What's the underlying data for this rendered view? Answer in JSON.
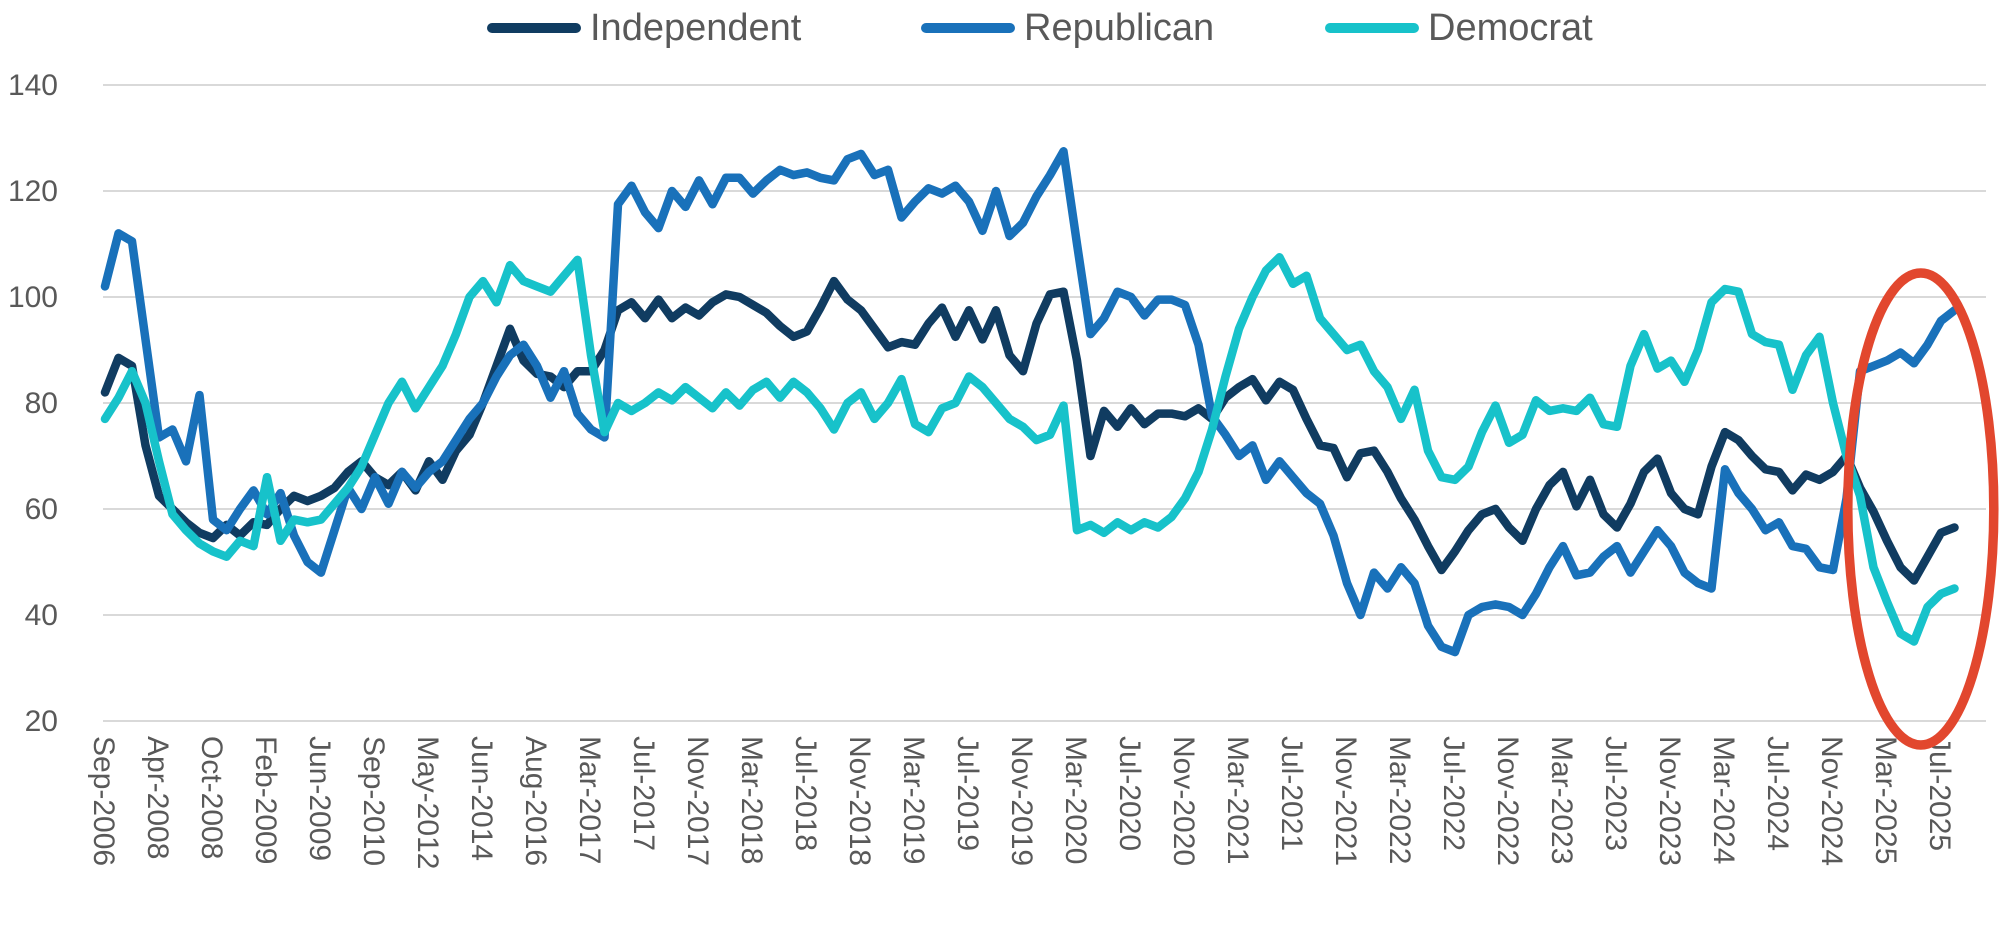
{
  "legend": {
    "items": [
      {
        "label": "Independent",
        "color": "#103c61"
      },
      {
        "label": "Republican",
        "color": "#1971ba"
      },
      {
        "label": "Democrat",
        "color": "#17c2ca"
      }
    ]
  },
  "annotation": {
    "shape": "ellipse",
    "meaning": "highlight of most recent period (Mar-2025 to Jul-2025)",
    "color": "#e2472e"
  },
  "axis_colors": {
    "tick_text": "#595959",
    "gridline": "#d9d9d9"
  },
  "chart_data": {
    "type": "line",
    "title": "",
    "xlabel": "",
    "ylabel": "",
    "grid": "horizontal",
    "legend_position": "top-center",
    "ylim": [
      20,
      140
    ],
    "yticks": [
      20,
      40,
      60,
      80,
      100,
      120,
      140
    ],
    "x_tick_labels": [
      "Sep-2006",
      "Apr-2008",
      "Oct-2008",
      "Feb-2009",
      "Jun-2009",
      "Sep-2010",
      "May-2012",
      "Jun-2014",
      "Aug-2016",
      "Mar-2017",
      "Jul-2017",
      "Nov-2017",
      "Mar-2018",
      "Jul-2018",
      "Nov-2018",
      "Mar-2019",
      "Jul-2019",
      "Nov-2019",
      "Mar-2020",
      "Jul-2020",
      "Nov-2020",
      "Mar-2021",
      "Jul-2021",
      "Nov-2021",
      "Mar-2022",
      "Jul-2022",
      "Nov-2022",
      "Mar-2023",
      "Jul-2023",
      "Nov-2023",
      "Mar-2024",
      "Jul-2024",
      "Nov-2024",
      "Mar-2025",
      "Jul-2025"
    ],
    "points_per_label_gap": 4,
    "x_tick_label_rotation_deg": 90,
    "series": [
      {
        "name": "Independent",
        "color": "#103c61",
        "values": [
          82,
          88.5,
          87,
          72,
          62.5,
          60,
          57.5,
          55.5,
          54.5,
          57,
          55,
          57.5,
          57,
          60,
          62.5,
          61.5,
          62.5,
          64,
          67,
          69,
          66,
          64.5,
          67,
          63.5,
          69,
          65.5,
          71,
          74,
          80,
          87,
          94,
          88,
          85.5,
          85,
          83,
          86,
          86,
          90,
          97.5,
          99,
          96,
          99.5,
          96,
          98,
          96.5,
          99,
          100.5,
          100,
          98.5,
          97,
          94.5,
          92.5,
          93.5,
          98,
          103,
          99.5,
          97.5,
          94,
          90.5,
          91.5,
          91,
          95,
          98,
          92.5,
          97.5,
          92,
          97.5,
          89,
          86,
          95,
          100.5,
          101,
          88,
          70,
          78.5,
          75.5,
          79,
          76,
          78,
          78,
          77.5,
          79,
          77,
          81,
          83,
          84.5,
          80.5,
          84,
          82.5,
          77,
          72,
          71.5,
          66,
          70.5,
          71,
          67,
          62,
          58,
          53,
          48.5,
          52,
          56,
          59,
          60,
          56.5,
          54,
          60,
          64.5,
          67,
          60.5,
          65.5,
          59,
          56.5,
          61,
          67,
          69.5,
          63,
          60,
          59,
          68,
          74.5,
          73,
          70,
          67.5,
          67,
          63.5,
          66.5,
          65.5,
          67,
          70,
          64,
          59.5,
          54,
          49,
          46.5,
          51,
          55.5,
          56.5
        ]
      },
      {
        "name": "Republican",
        "color": "#1971ba",
        "values": [
          102,
          112,
          110.5,
          92,
          73.5,
          75,
          69,
          81.5,
          58,
          56,
          60,
          63.5,
          59,
          63,
          55,
          50,
          48,
          56,
          64,
          60,
          66,
          61,
          67,
          64,
          67,
          69,
          73,
          77,
          80,
          85,
          89,
          91,
          87,
          81,
          86,
          78,
          75,
          73.5,
          117.5,
          121,
          116,
          113,
          120,
          117,
          122,
          117.5,
          122.5,
          122.5,
          119.5,
          122,
          124,
          123,
          123.5,
          122.5,
          122,
          126,
          127,
          123,
          124,
          115,
          118,
          120.5,
          119.5,
          121,
          118,
          112.5,
          120,
          111.5,
          114,
          119,
          123,
          127.5,
          110,
          93,
          96,
          101,
          100,
          96.5,
          99.5,
          99.5,
          98.5,
          91,
          77.5,
          74,
          70,
          72,
          65.5,
          69,
          66,
          63,
          61,
          55,
          46,
          40,
          48,
          45,
          49,
          46,
          38,
          34,
          33,
          40,
          41.5,
          42,
          41.5,
          40,
          44,
          49,
          53,
          47.5,
          48,
          51,
          53,
          48,
          52,
          56,
          53,
          48,
          46,
          45,
          67.5,
          63,
          60,
          56,
          57.5,
          53,
          52.5,
          49,
          48.5,
          62,
          86,
          87,
          88,
          89.5,
          87.5,
          91,
          95.5,
          97.5
        ]
      },
      {
        "name": "Democrat",
        "color": "#17c2ca",
        "values": [
          77,
          81,
          86,
          80,
          69,
          59,
          56,
          53.5,
          52,
          51,
          54,
          53,
          66,
          54,
          58,
          57.5,
          58,
          61,
          64,
          68,
          74,
          80,
          84,
          79,
          83,
          87,
          93,
          100,
          103,
          99,
          106,
          103,
          102,
          101,
          104,
          107,
          89,
          74.5,
          80,
          78.5,
          80,
          82,
          80.5,
          83,
          81,
          79,
          82,
          79.5,
          82.5,
          84,
          81,
          84,
          82,
          79,
          75,
          80,
          82,
          77,
          80,
          84.5,
          76,
          74.5,
          79,
          80,
          85,
          83,
          80,
          77,
          75.5,
          73,
          74,
          79.5,
          56,
          57,
          55.5,
          57.5,
          56,
          57.5,
          56.5,
          58.5,
          62,
          67,
          75,
          85,
          94,
          100,
          105,
          107.5,
          102.5,
          104,
          96,
          93,
          90,
          91,
          86,
          83,
          77,
          82.5,
          71,
          66,
          65.5,
          68,
          74.5,
          79.5,
          72.5,
          74,
          80.5,
          78.5,
          79,
          78.5,
          81,
          76,
          75.5,
          87,
          93,
          86.5,
          88,
          84,
          90,
          99,
          101.5,
          101,
          93,
          91.5,
          91,
          82.5,
          89,
          92.5,
          80,
          70,
          62.5,
          49,
          42.5,
          36.5,
          35,
          41.5,
          44,
          45
        ]
      }
    ],
    "annotation_ellipse": {
      "cx_value_index": 134.5,
      "y_center_value": 60,
      "color": "#e2472e"
    }
  }
}
